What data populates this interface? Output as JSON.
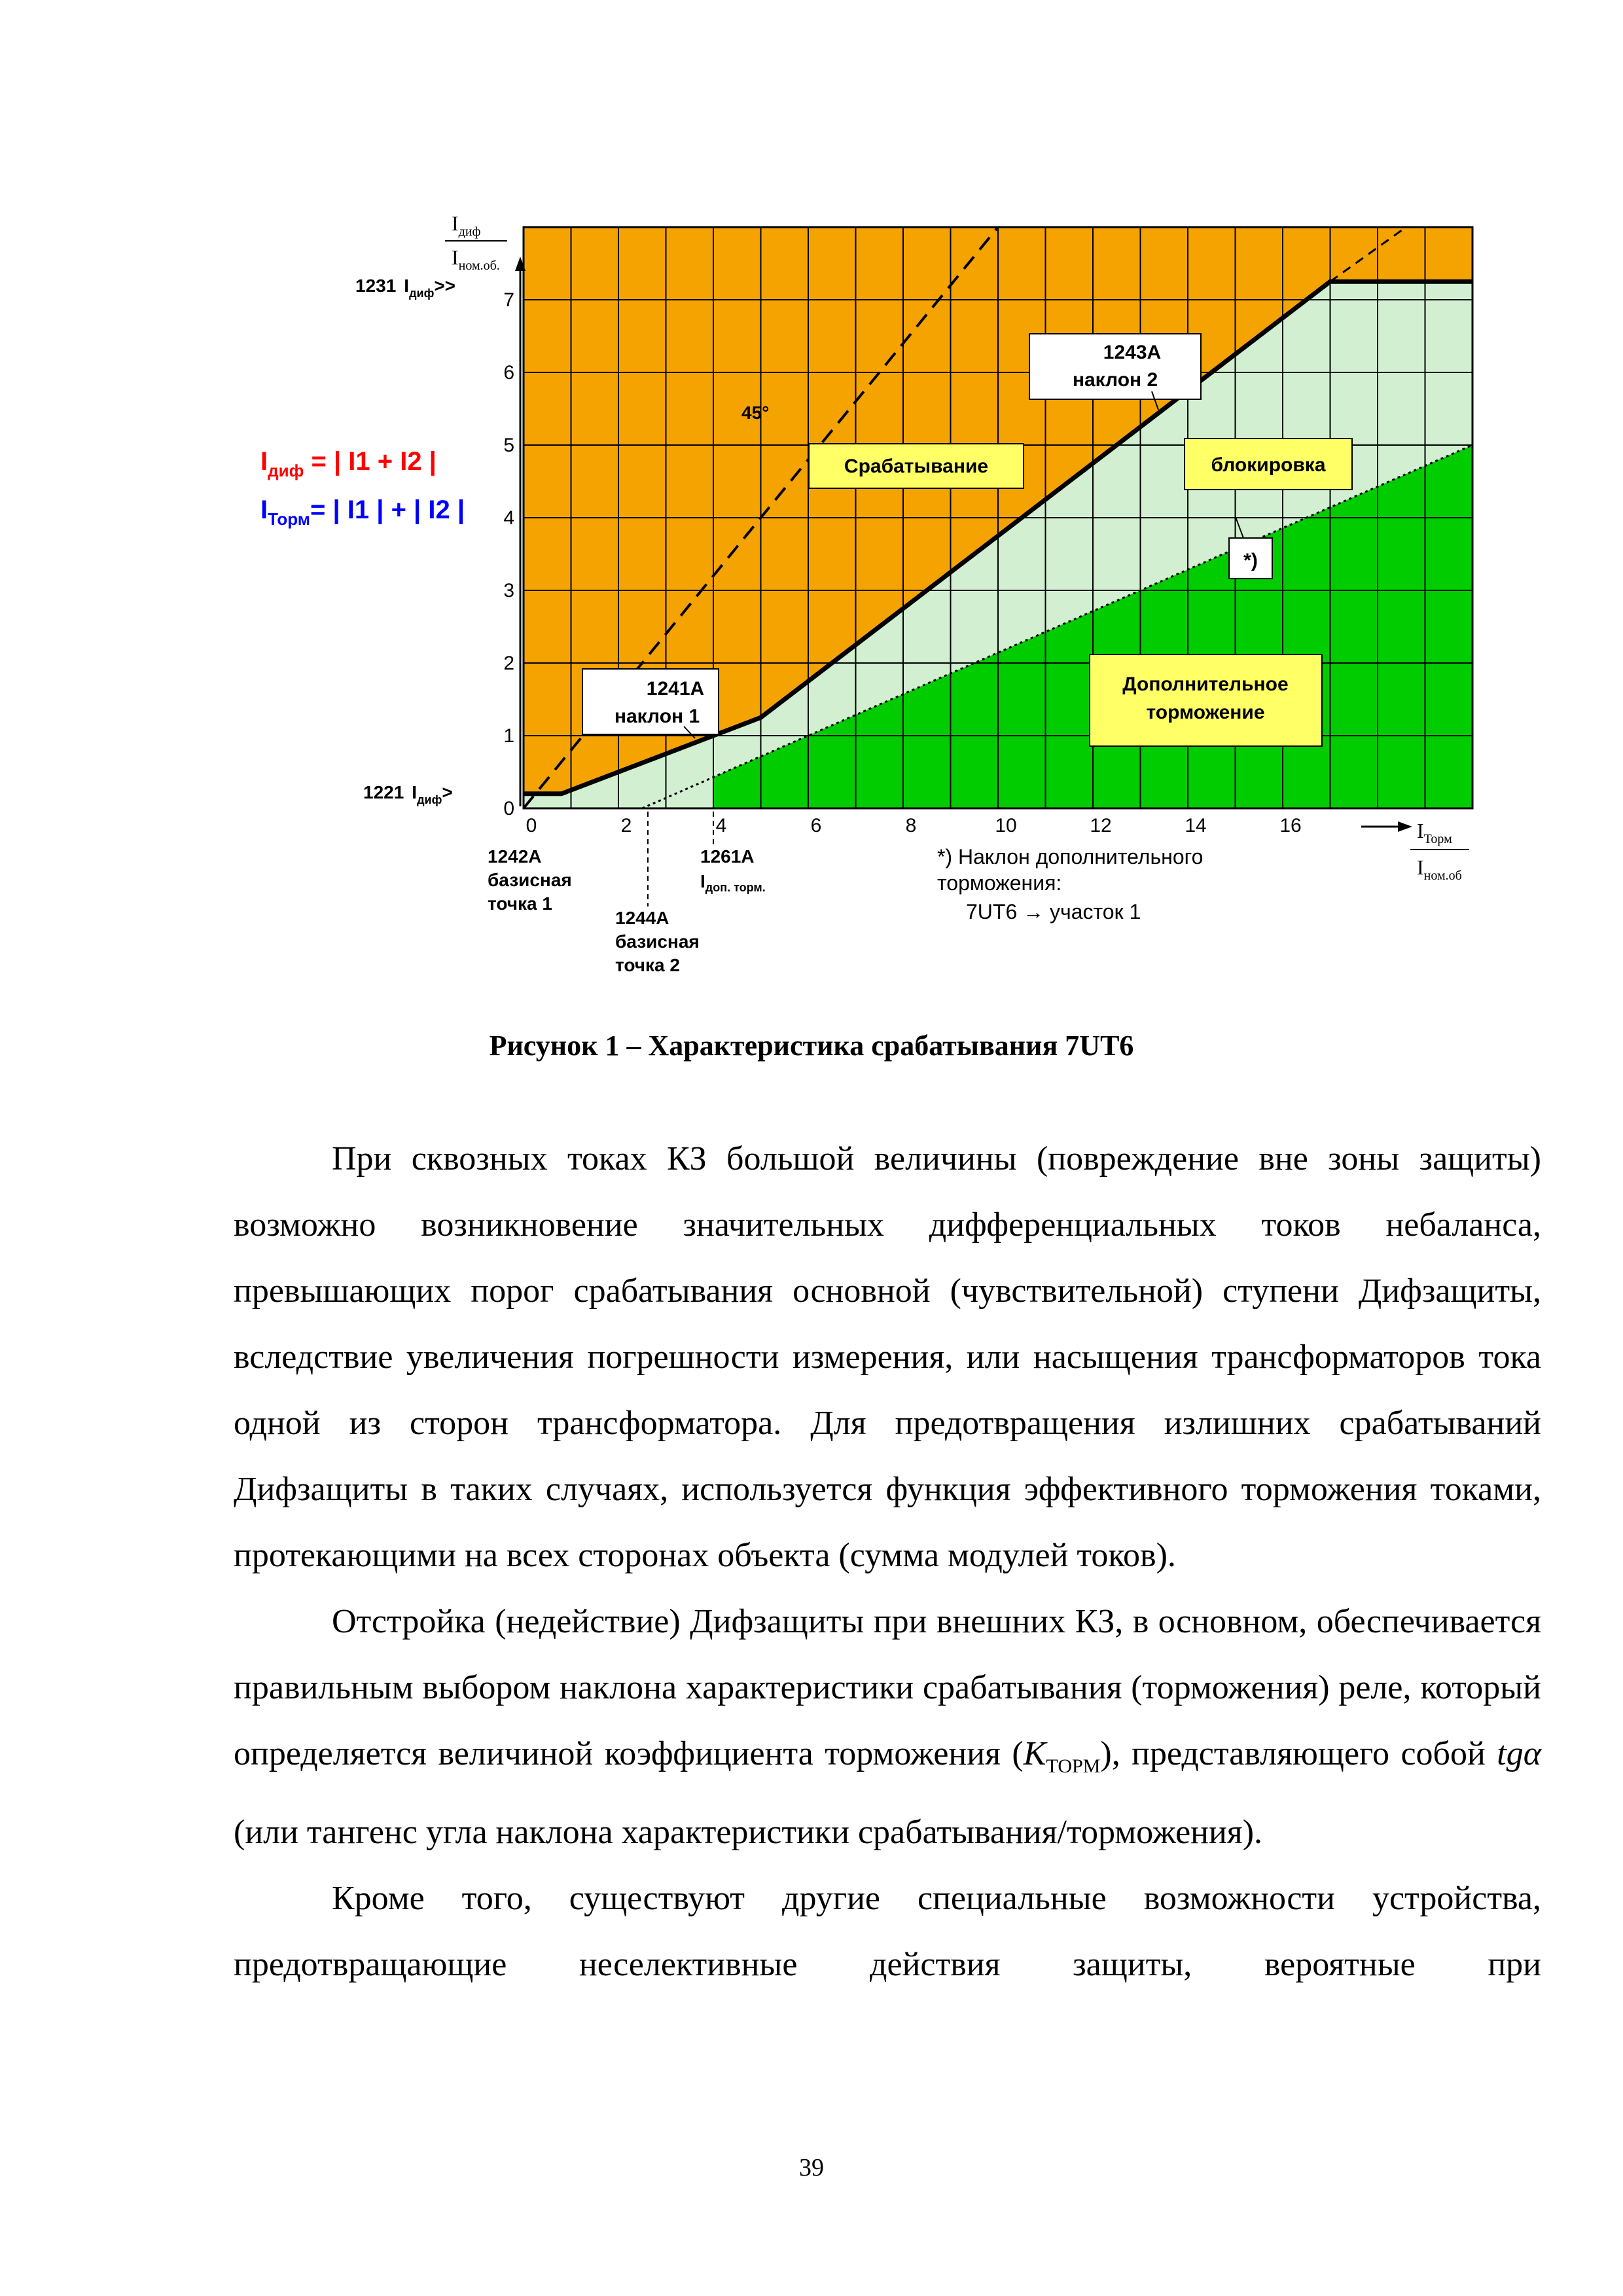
{
  "colors": {
    "operate": "#f5a300",
    "block": "#d2efd2",
    "extra": "#00cc00",
    "label_box": "#ffff66",
    "idiff_formula": "#ff0000",
    "itorm_formula": "#0000ff"
  },
  "chart_data": {
    "type": "line",
    "x_ticks": [
      "0",
      "2",
      "4",
      "6",
      "8",
      "10",
      "12",
      "14",
      "16"
    ],
    "y_ticks": [
      "0",
      "1",
      "2",
      "3",
      "4",
      "5",
      "6",
      "7"
    ],
    "xlim": [
      0,
      20
    ],
    "ylim": [
      0,
      8
    ],
    "grid": true,
    "characteristic": {
      "x": [
        0,
        0.8,
        4,
        5,
        17,
        20
      ],
      "y": [
        0.2,
        0.2,
        1,
        1.25,
        7.25,
        7.25
      ]
    },
    "additional_restraint": {
      "x": [
        2.5,
        20
      ],
      "y": [
        0,
        5
      ]
    },
    "diagonal_45": {
      "x": [
        0,
        10
      ],
      "y": [
        0,
        8
      ]
    },
    "y_axis_label_num": "I",
    "y_axis_label_num_sub": "диф",
    "y_axis_label_den": "I",
    "y_axis_label_den_sub": "ном.об.",
    "x_axis_label_num": "I",
    "x_axis_label_num_sub": "Торм",
    "x_axis_label_den": "I",
    "x_axis_label_den_sub": "ном.об",
    "label_1231": "1231",
    "label_1231_i": "I",
    "label_1231_sub": "диф",
    "label_1231_suffix": ">>",
    "label_1221": "1221",
    "label_1221_i": "I",
    "label_1221_sub": "диф",
    "label_1221_suffix": ">",
    "angle_label": "45°",
    "zone_operate": "Срабатывание",
    "zone_block": "блокировка",
    "zone_extra_line1": "Дополнительное",
    "zone_extra_line2": "торможение",
    "star_label": "*)",
    "box_1243_line1": "1243A",
    "box_1243_line2": "наклон 2",
    "box_1241_line1": "1241A",
    "box_1241_line2": "наклон 1",
    "label_1242": [
      "1242A",
      "базисная",
      "точка 1"
    ],
    "label_1244": [
      "1244A",
      "базисная",
      "точка 2"
    ],
    "label_1261_line1": "1261A",
    "label_1261_i": "I",
    "label_1261_sub": "доп. торм.",
    "footnote": [
      "*) Наклон дополнительного",
      "торможения:",
      "7UT6 → участок 1"
    ],
    "formula_idiff_i": "I",
    "formula_idiff_sub": "диф",
    "formula_idiff_rest": " = | I1 + I2 |",
    "formula_itorm_i": "I",
    "formula_itorm_sub": "Торм",
    "formula_itorm_rest": "= | I1 | + | I2 |"
  },
  "caption": "Рисунок 1  – Характеристика срабатывания 7UT6",
  "paragraphs": {
    "p1": "При сквозных токах КЗ большой величины (повреждение вне зоны защиты) возможно возникновение значительных дифференциальных токов небаланса, превышающих порог срабатывания основной (чувствительной) ступени Дифзащиты, вследствие увеличения погрешности измерения, или насыщения трансформаторов тока одной из сторон трансформатора. Для предотвращения излишних срабатываний Дифзащиты в таких случаях, используется функция эффективного торможения токами, протекающими на всех сторонах объекта (сумма модулей токов).",
    "p2_a": "Отстройка (недействие) Дифзащиты при внешних КЗ, в основном, обеспечивается правильным выбором наклона характеристики срабатывания (торможения) реле, который определяется величиной коэффициента торможения (",
    "p2_k": "K",
    "p2_k_sub": "ТОРМ",
    "p2_b": "), представляющего собой",
    "p2_tg": "tgα",
    "p2_c": "(или тангенс угла наклона характеристики срабатывания/торможения).",
    "p3": "Кроме того, существуют другие специальные возможности устройства, предотвращающие неселективные действия защиты, вероятные при"
  },
  "page_number": "39"
}
